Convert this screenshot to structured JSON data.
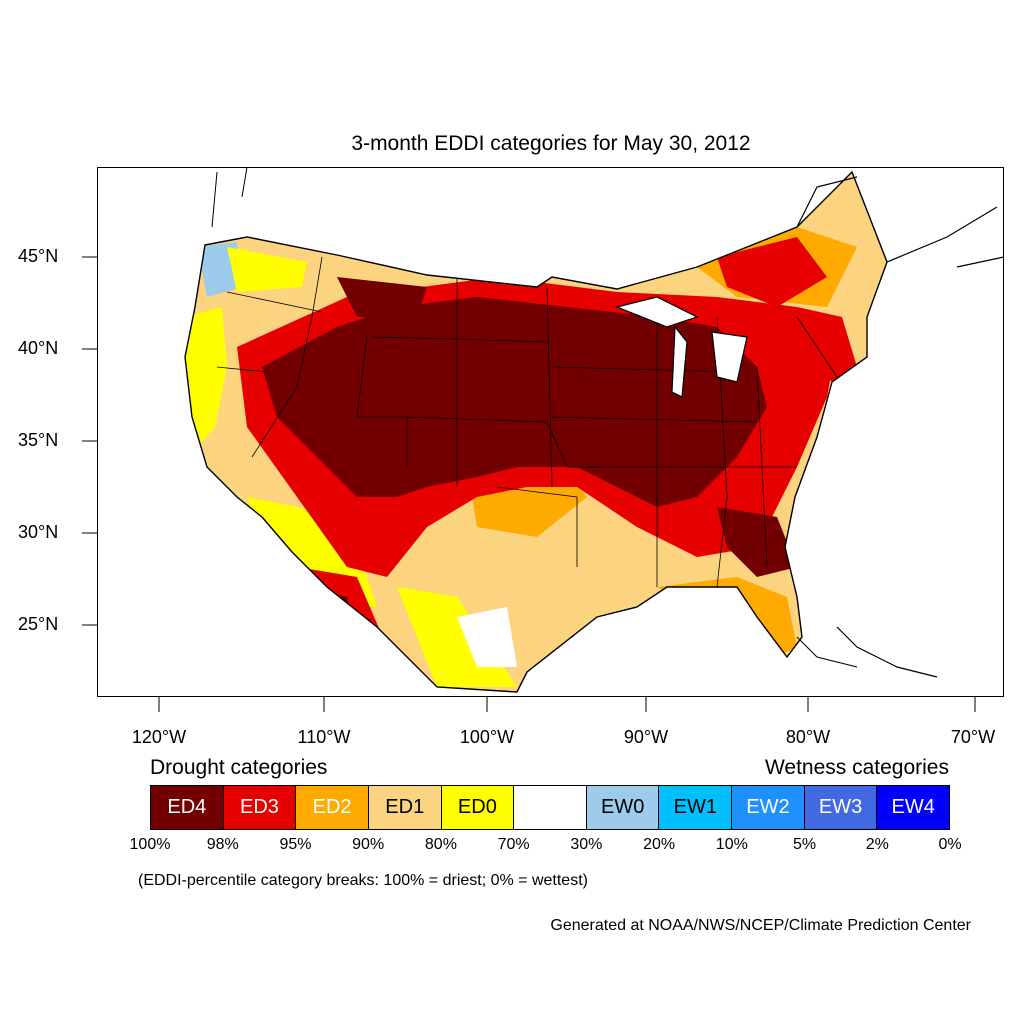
{
  "title": "3-month EDDI categories for May 30, 2012",
  "map": {
    "region": "CONUS",
    "lat_labels": [
      "45°N",
      "40°N",
      "35°N",
      "30°N",
      "25°N"
    ],
    "lon_labels": [
      "120°W",
      "110°W",
      "100°W",
      "90°W",
      "80°W",
      "70°W"
    ]
  },
  "legend": {
    "drought_heading": "Drought categories",
    "wetness_heading": "Wetness categories",
    "categories": [
      {
        "label": "ED4",
        "color": "#730000",
        "text_color": "#ffffff"
      },
      {
        "label": "ED3",
        "color": "#e60000",
        "text_color": "#ffffff"
      },
      {
        "label": "ED2",
        "color": "#ffaa00",
        "text_color": "#ffffff"
      },
      {
        "label": "ED1",
        "color": "#fcd37f",
        "text_color": "#000000"
      },
      {
        "label": "ED0",
        "color": "#ffff00",
        "text_color": "#000000"
      },
      {
        "label": "",
        "color": "#ffffff",
        "text_color": "#000000"
      },
      {
        "label": "EW0",
        "color": "#9ccbeb",
        "text_color": "#000000"
      },
      {
        "label": "EW1",
        "color": "#00bfff",
        "text_color": "#000000"
      },
      {
        "label": "EW2",
        "color": "#1e90ff",
        "text_color": "#ffffff"
      },
      {
        "label": "EW3",
        "color": "#4169e1",
        "text_color": "#ffffff"
      },
      {
        "label": "EW4",
        "color": "#0000ff",
        "text_color": "#ffffff"
      }
    ],
    "breaks": [
      "100%",
      "98%",
      "95%",
      "90%",
      "80%",
      "70%",
      "30%",
      "20%",
      "10%",
      "5%",
      "2%",
      "0%"
    ]
  },
  "note": "(EDDI-percentile category breaks: 100% = driest; 0% = wettest)",
  "credit": "Generated at NOAA/NWS/NCEP/Climate Prediction Center"
}
